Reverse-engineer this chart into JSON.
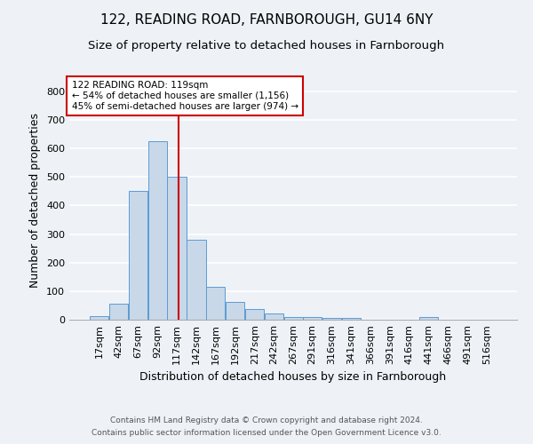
{
  "title1": "122, READING ROAD, FARNBOROUGH, GU14 6NY",
  "title2": "Size of property relative to detached houses in Farnborough",
  "xlabel": "Distribution of detached houses by size in Farnborough",
  "ylabel": "Number of detached properties",
  "footnote1": "Contains HM Land Registry data © Crown copyright and database right 2024.",
  "footnote2": "Contains public sector information licensed under the Open Government Licence v3.0.",
  "annotation_line1": "122 READING ROAD: 119sqm",
  "annotation_line2": "← 54% of detached houses are smaller (1,156)",
  "annotation_line3": "45% of semi-detached houses are larger (974) →",
  "bar_color": "#c8d8e8",
  "bar_edge_color": "#5b9bd5",
  "vline_color": "#cc0000",
  "vline_x": 119,
  "categories": [
    17,
    42,
    67,
    92,
    117,
    142,
    167,
    192,
    217,
    242,
    267,
    291,
    316,
    341,
    366,
    391,
    416,
    441,
    466,
    491,
    516
  ],
  "values": [
    12,
    55,
    450,
    625,
    500,
    280,
    115,
    62,
    37,
    22,
    10,
    8,
    7,
    7,
    0,
    0,
    0,
    8,
    0,
    0,
    0
  ],
  "ylim": [
    0,
    840
  ],
  "yticks": [
    0,
    100,
    200,
    300,
    400,
    500,
    600,
    700,
    800
  ],
  "bin_width": 25,
  "background_color": "#eef2f7",
  "grid_color": "#ffffff",
  "annotation_box_color": "#ffffff",
  "annotation_box_edge": "#cc0000",
  "title1_fontsize": 11,
  "title2_fontsize": 9.5,
  "axis_fontsize": 9,
  "tick_fontsize": 8,
  "footnote_fontsize": 6.5
}
